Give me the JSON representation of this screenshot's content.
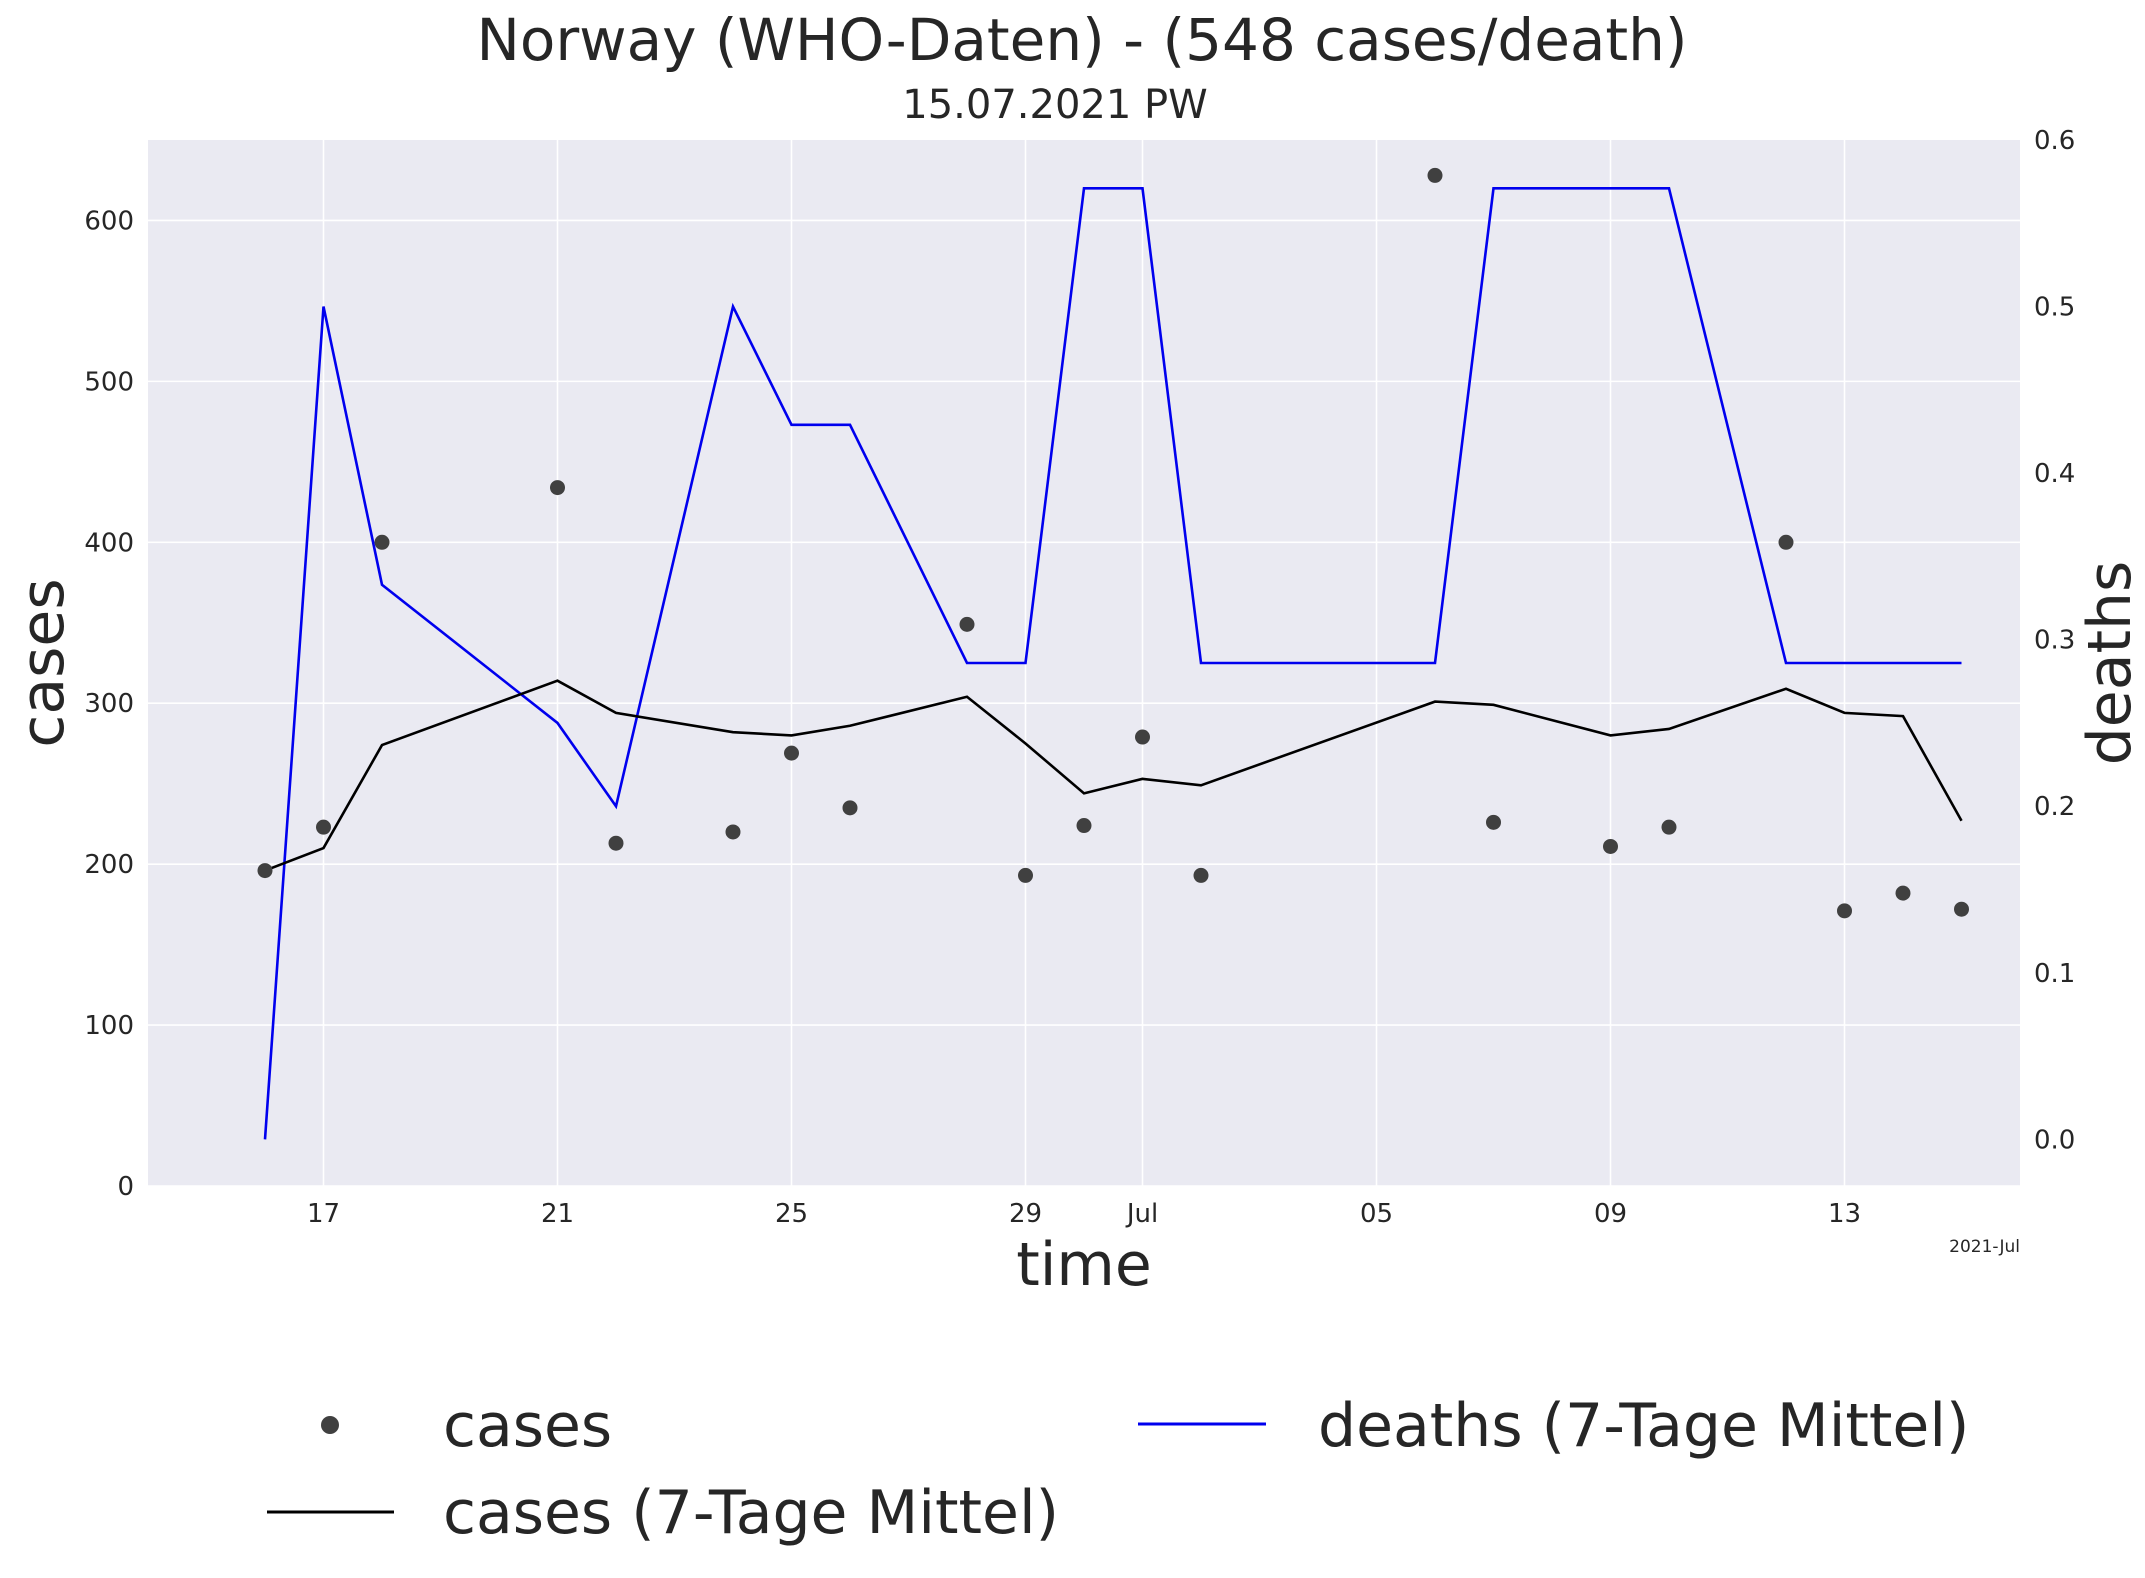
{
  "chart_data": {
    "type": "line",
    "title": "Norway (WHO-Daten) - (548 cases/death)",
    "subtitle": "15.07.2021 PW",
    "xlabel": "time",
    "ylabel": "cases",
    "y2label": "deaths",
    "x_offset_label": "2021-Jul",
    "x_tick_labels": [
      "17",
      "21",
      "25",
      "29",
      "Jul",
      "05",
      "09",
      "13"
    ],
    "x_tick_dates": [
      "2021-06-17",
      "2021-06-21",
      "2021-06-25",
      "2021-06-29",
      "2021-07-01",
      "2021-07-05",
      "2021-07-09",
      "2021-07-13"
    ],
    "xlim": [
      "2021-06-14",
      "2021-07-16"
    ],
    "ylim": [
      0,
      650
    ],
    "y_ticks": [
      0,
      100,
      200,
      300,
      400,
      500,
      600
    ],
    "y2lim": [
      -0.028,
      0.6
    ],
    "y2_ticks": [
      "0.0",
      "0.1",
      "0.2",
      "0.3",
      "0.4",
      "0.5",
      "0.6"
    ],
    "grid": true,
    "legend_position": "bottom",
    "colors": {
      "background": "#eaeaf2",
      "grid": "#ffffff",
      "cases_points": "#404040",
      "cases_avg": "#000000",
      "deaths_avg": "#0000ee",
      "y2label": "#0000ee"
    },
    "series": [
      {
        "name": "cases",
        "kind": "points",
        "axis": "left",
        "x": [
          "2021-06-16",
          "2021-06-17",
          "2021-06-18",
          "2021-06-21",
          "2021-06-22",
          "2021-06-24",
          "2021-06-25",
          "2021-06-26",
          "2021-06-28",
          "2021-06-29",
          "2021-06-30",
          "2021-07-01",
          "2021-07-02",
          "2021-07-06",
          "2021-07-07",
          "2021-07-09",
          "2021-07-10",
          "2021-07-12",
          "2021-07-13",
          "2021-07-14",
          "2021-07-15"
        ],
        "values": [
          196,
          223,
          400,
          434,
          213,
          220,
          269,
          235,
          349,
          193,
          224,
          279,
          193,
          628,
          226,
          211,
          223,
          400,
          171,
          182,
          172
        ]
      },
      {
        "name": "cases (7-Tage Mittel)",
        "kind": "line",
        "axis": "left",
        "x": [
          "2021-06-16",
          "2021-06-17",
          "2021-06-18",
          "2021-06-21",
          "2021-06-22",
          "2021-06-24",
          "2021-06-25",
          "2021-06-26",
          "2021-06-28",
          "2021-06-29",
          "2021-06-30",
          "2021-07-01",
          "2021-07-02",
          "2021-07-06",
          "2021-07-07",
          "2021-07-09",
          "2021-07-10",
          "2021-07-12",
          "2021-07-13",
          "2021-07-14",
          "2021-07-15"
        ],
        "values": [
          196,
          210,
          274,
          314,
          294,
          282,
          280,
          286,
          304,
          275,
          244,
          253,
          249,
          301,
          299,
          280,
          284,
          309,
          294,
          292,
          227
        ]
      },
      {
        "name": "deaths (7-Tage Mittel)",
        "kind": "line",
        "axis": "right",
        "x": [
          "2021-06-16",
          "2021-06-17",
          "2021-06-18",
          "2021-06-21",
          "2021-06-22",
          "2021-06-24",
          "2021-06-25",
          "2021-06-26",
          "2021-06-28",
          "2021-06-29",
          "2021-06-30",
          "2021-07-01",
          "2021-07-02",
          "2021-07-06",
          "2021-07-07",
          "2021-07-09",
          "2021-07-10",
          "2021-07-12",
          "2021-07-13",
          "2021-07-14",
          "2021-07-15"
        ],
        "values": [
          0.0,
          0.5,
          0.333,
          0.25,
          0.2,
          0.5,
          0.429,
          0.429,
          0.286,
          0.286,
          0.571,
          0.571,
          0.286,
          0.286,
          0.571,
          0.571,
          0.571,
          0.286,
          0.286,
          0.286,
          0.286
        ]
      }
    ]
  }
}
